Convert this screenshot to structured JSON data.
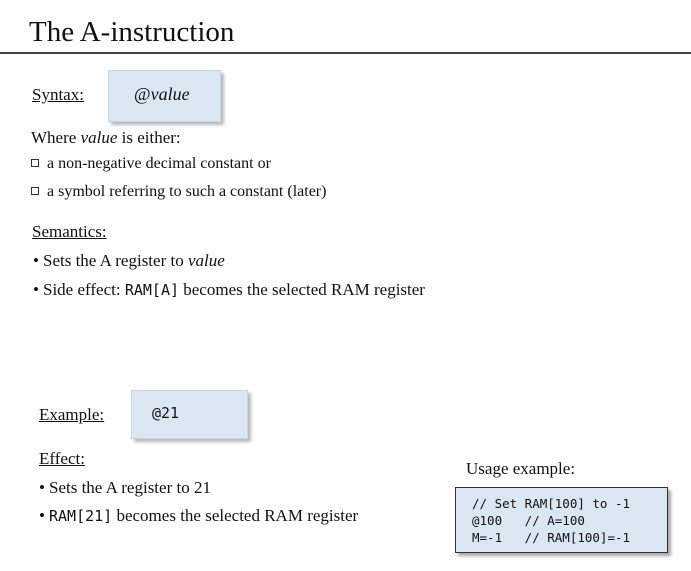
{
  "title": "The A-instruction",
  "syntax": {
    "label": "Syntax:",
    "code_at": "@",
    "code_word": "value"
  },
  "where": {
    "prefix": "Where ",
    "value_word": "value",
    "suffix": " is either:",
    "options": [
      "a non-negative decimal constant   or",
      "a symbol referring to such a constant (later)"
    ]
  },
  "semantics": {
    "label": "Semantics:",
    "b1_prefix": "Sets the A register to ",
    "b1_value": "value",
    "b2_prefix": "Side effect: ",
    "b2_code": "RAM[A]",
    "b2_suffix": " becomes the selected RAM register",
    "bullet": "•"
  },
  "example": {
    "label": "Example:",
    "code": "@21"
  },
  "effect": {
    "label": "Effect:",
    "b1": "Sets the A register to 21",
    "b2_code": "RAM[21]",
    "b2_suffix": "  becomes the selected RAM register"
  },
  "usage": {
    "title": "Usage example:",
    "lines": [
      "// Set RAM[100] to -1",
      "@100   // A=100",
      "M=-1   // RAM[100]=-1"
    ]
  }
}
